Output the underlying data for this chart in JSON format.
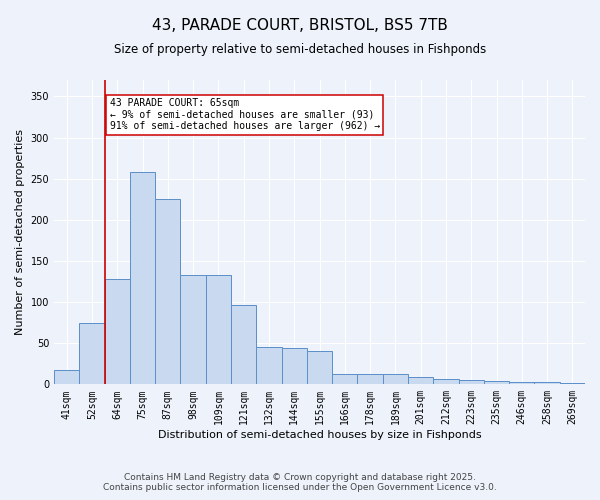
{
  "title": "43, PARADE COURT, BRISTOL, BS5 7TB",
  "subtitle": "Size of property relative to semi-detached houses in Fishponds",
  "xlabel": "Distribution of semi-detached houses by size in Fishponds",
  "ylabel": "Number of semi-detached properties",
  "categories": [
    "41sqm",
    "52sqm",
    "64sqm",
    "75sqm",
    "87sqm",
    "98sqm",
    "109sqm",
    "121sqm",
    "132sqm",
    "144sqm",
    "155sqm",
    "166sqm",
    "178sqm",
    "189sqm",
    "201sqm",
    "212sqm",
    "223sqm",
    "235sqm",
    "246sqm",
    "258sqm",
    "269sqm"
  ],
  "values": [
    17,
    75,
    128,
    258,
    225,
    133,
    133,
    97,
    45,
    44,
    40,
    13,
    13,
    13,
    9,
    7,
    5,
    4,
    3,
    3,
    2
  ],
  "bar_color": "#c8d9f0",
  "bar_edge_color": "#5b8fc9",
  "vline_color": "#cc0000",
  "annotation_title": "43 PARADE COURT: 65sqm",
  "annotation_line1": "← 9% of semi-detached houses are smaller (93)",
  "annotation_line2": "91% of semi-detached houses are larger (962) →",
  "annotation_box_edgecolor": "#cc0000",
  "ylim": [
    0,
    370
  ],
  "yticks": [
    0,
    50,
    100,
    150,
    200,
    250,
    300,
    350
  ],
  "footer_line1": "Contains HM Land Registry data © Crown copyright and database right 2025.",
  "footer_line2": "Contains public sector information licensed under the Open Government Licence v3.0.",
  "bg_color": "#edf2fb",
  "plot_bg_color": "#edf2fb",
  "grid_color": "#ffffff",
  "title_fontsize": 11,
  "subtitle_fontsize": 8.5,
  "tick_fontsize": 7,
  "label_fontsize": 8,
  "footer_fontsize": 6.5,
  "annotation_fontsize": 7
}
